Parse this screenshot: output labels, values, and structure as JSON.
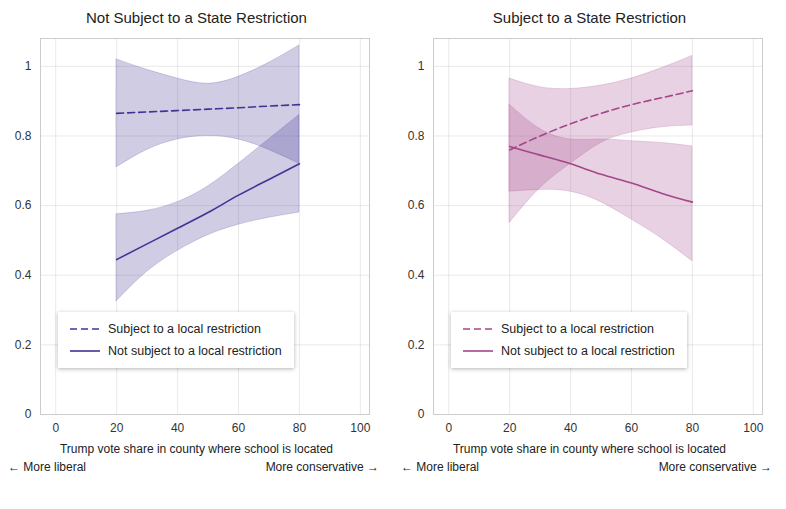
{
  "chart_data": [
    {
      "type": "line",
      "title": "Not Subject to a State Restriction",
      "x_label": "Trump vote share in county where school is located",
      "annotations": [
        "← More liberal",
        "More conservative →"
      ],
      "x": [
        20,
        30,
        40,
        50,
        60,
        70,
        80
      ],
      "xlim": [
        -5,
        103
      ],
      "xticks": [
        0,
        20,
        40,
        60,
        80,
        100
      ],
      "ylim": [
        0,
        1.08
      ],
      "yticks": [
        0,
        0.2,
        0.4,
        0.6,
        0.8,
        1
      ],
      "grid": true,
      "legend": "bottom",
      "series": [
        {
          "name": "Subject to a local restriction",
          "color": "#3f3594",
          "line_style": "dashed",
          "values": [
            0.865,
            0.869,
            0.873,
            0.877,
            0.881,
            0.886,
            0.89
          ],
          "lower": [
            0.71,
            0.76,
            0.79,
            0.8,
            0.79,
            0.76,
            0.72
          ],
          "upper": [
            1.02,
            0.99,
            0.965,
            0.95,
            0.97,
            1.01,
            1.06
          ]
        },
        {
          "name": "Not subject to a local restriction",
          "color": "#3f3594",
          "line_style": "solid",
          "values": [
            0.445,
            0.49,
            0.535,
            0.58,
            0.63,
            0.675,
            0.72
          ],
          "lower": [
            0.325,
            0.41,
            0.47,
            0.515,
            0.545,
            0.565,
            0.58
          ],
          "upper": [
            0.575,
            0.585,
            0.61,
            0.655,
            0.72,
            0.79,
            0.86
          ]
        }
      ]
    },
    {
      "type": "line",
      "title": "Subject to a State Restriction",
      "x_label": "Trump vote share in county where school is located",
      "annotations": [
        "← More liberal",
        "More conservative →"
      ],
      "x": [
        20,
        30,
        40,
        50,
        60,
        70,
        80
      ],
      "xlim": [
        -5,
        103
      ],
      "xticks": [
        0,
        20,
        40,
        60,
        80,
        100
      ],
      "ylim": [
        0,
        1.08
      ],
      "yticks": [
        0,
        0.2,
        0.4,
        0.6,
        0.8,
        1
      ],
      "grid": true,
      "legend": "bottom",
      "series": [
        {
          "name": "Subject to a local restriction",
          "color": "#a3468a",
          "line_style": "dashed",
          "values": [
            0.76,
            0.8,
            0.835,
            0.865,
            0.89,
            0.91,
            0.93
          ],
          "lower": [
            0.55,
            0.65,
            0.72,
            0.78,
            0.81,
            0.825,
            0.83
          ],
          "upper": [
            0.965,
            0.94,
            0.935,
            0.945,
            0.965,
            0.995,
            1.03
          ]
        },
        {
          "name": "Not subject to a local restriction",
          "color": "#a3468a",
          "line_style": "solid",
          "values": [
            0.77,
            0.745,
            0.72,
            0.69,
            0.665,
            0.635,
            0.61
          ],
          "lower": [
            0.64,
            0.645,
            0.64,
            0.61,
            0.56,
            0.505,
            0.44
          ],
          "upper": [
            0.89,
            0.82,
            0.79,
            0.79,
            0.785,
            0.78,
            0.77
          ]
        }
      ]
    }
  ]
}
